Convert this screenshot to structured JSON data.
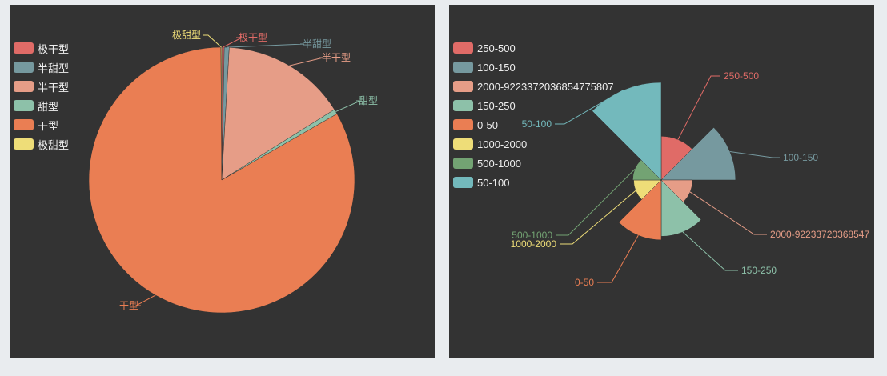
{
  "chart_data": [
    {
      "type": "pie",
      "title": "",
      "legend_position": "top-left",
      "slices": [
        {
          "name": "极干型",
          "value": 0.3,
          "color": "#e06b67"
        },
        {
          "name": "半甜型",
          "value": 0.6,
          "color": "#76999f"
        },
        {
          "name": "半干型",
          "value": 15.2,
          "color": "#e69d87"
        },
        {
          "name": "甜型",
          "value": 0.6,
          "color": "#8dc1a9"
        },
        {
          "name": "干型",
          "value": 83.2,
          "color": "#ea7e53"
        },
        {
          "name": "极甜型",
          "value": 0.1,
          "color": "#eedd78"
        }
      ]
    },
    {
      "type": "pie",
      "subtype": "rose",
      "title": "",
      "legend_position": "top-left",
      "slices": [
        {
          "name": "250-500",
          "value": 11,
          "color": "#e06b67"
        },
        {
          "name": "100-150",
          "value": 28,
          "color": "#76999f"
        },
        {
          "name": "2000-9223372036854775807",
          "value": 4,
          "color": "#e69d87"
        },
        {
          "name": "150-250",
          "value": 18,
          "color": "#8dc1a9"
        },
        {
          "name": "0-50",
          "value": 20,
          "color": "#ea7e53"
        },
        {
          "name": "1000-2000",
          "value": 2,
          "color": "#eedd78"
        },
        {
          "name": "500-1000",
          "value": 2.5,
          "color": "#73a373"
        },
        {
          "name": "50-100",
          "value": 41,
          "color": "#73b9bc"
        }
      ],
      "callout_labels": [
        "250-500",
        "100-150",
        "2000-92233720368547",
        "150-250",
        "0-50",
        "1000-2000",
        "500-1000",
        "50-100"
      ]
    }
  ]
}
